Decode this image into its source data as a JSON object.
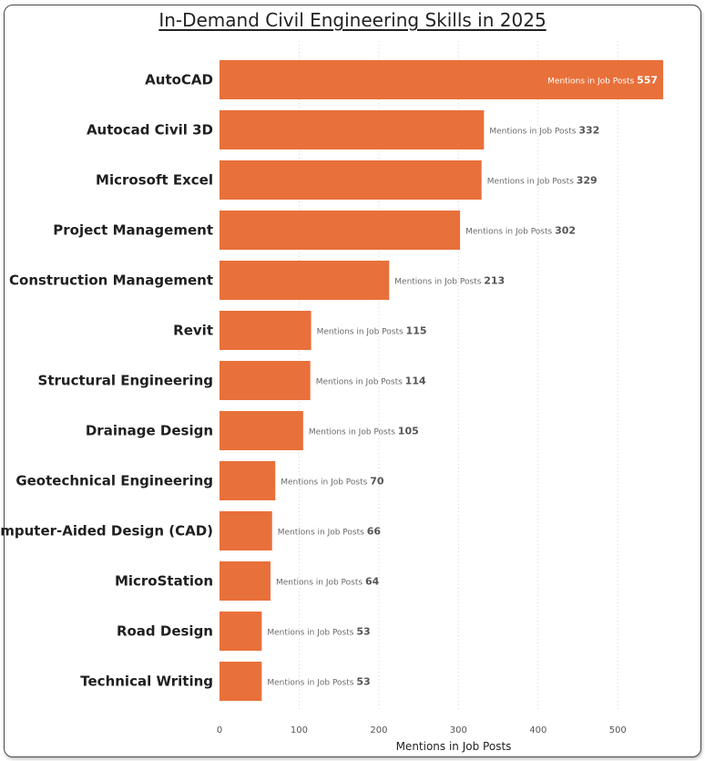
{
  "chart_data": {
    "type": "bar",
    "orientation": "horizontal",
    "title": "In-Demand Civil Engineering Skills in 2025",
    "xlabel": "Mentions in Job Posts",
    "ylabel": "",
    "xlim": [
      0,
      557
    ],
    "xticks": [
      0,
      100,
      200,
      300,
      400,
      500
    ],
    "grid": true,
    "bar_color": "#E8703A",
    "data_label_prefix": "Mentions in Job Posts",
    "categories": [
      "AutoCAD",
      "Autocad Civil 3D",
      "Microsoft Excel",
      "Project Management",
      "Construction Management",
      "Revit",
      "Structural Engineering",
      "Drainage Design",
      "Geotechnical Engineering",
      "Computer-Aided Design (CAD)",
      "MicroStation",
      "Road Design",
      "Technical Writing"
    ],
    "values": [
      557,
      332,
      329,
      302,
      213,
      115,
      114,
      105,
      70,
      66,
      64,
      53,
      53
    ]
  }
}
